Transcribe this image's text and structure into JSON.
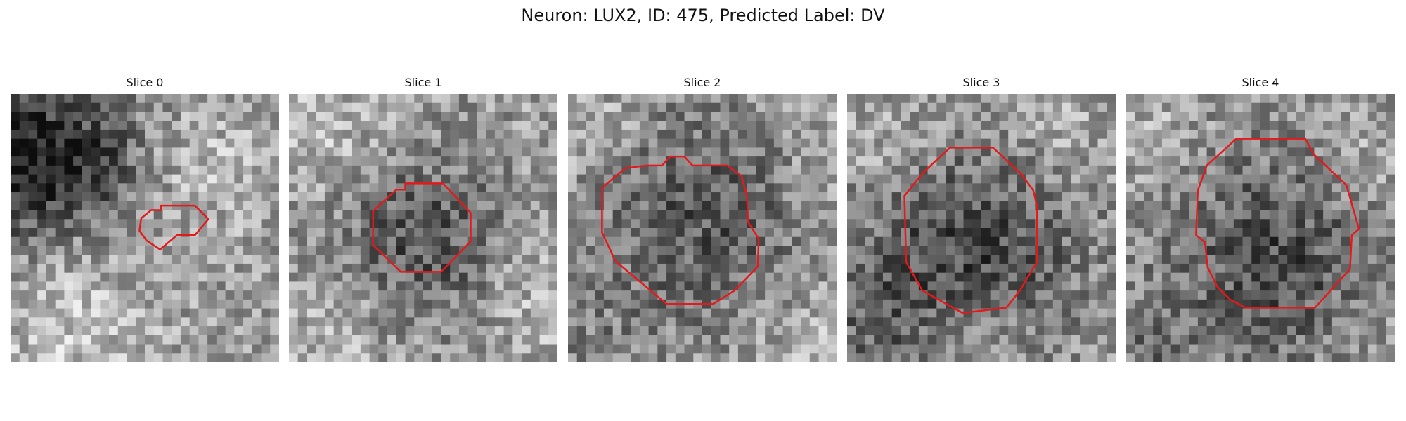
{
  "title": "Neuron: LUX2, ID: 475, Predicted Label: DV",
  "contour_color": "#e31a1c",
  "slices": [
    {
      "label": "Slice 0",
      "seed": 17,
      "dark_centers": [
        [
          3,
          5,
          8,
          0.3
        ],
        [
          1,
          8,
          5,
          0.28
        ],
        [
          10,
          8,
          3,
          0.14
        ]
      ],
      "bright_centers": [
        [
          6,
          25,
          6,
          0.16
        ],
        [
          21,
          8,
          5,
          0.12
        ]
      ],
      "contour": [
        [
          16.8,
          12.5
        ],
        [
          20.6,
          12.5
        ],
        [
          22.1,
          14.0
        ],
        [
          20.6,
          15.8
        ],
        [
          18.6,
          15.8
        ],
        [
          16.7,
          17.4
        ],
        [
          15.2,
          16.4
        ],
        [
          14.4,
          15.3
        ],
        [
          14.6,
          13.9
        ],
        [
          15.7,
          13.0
        ],
        [
          16.8,
          13.0
        ]
      ]
    },
    {
      "label": "Slice 1",
      "seed": 41,
      "dark_centers": [
        [
          14.5,
          16,
          7,
          0.3
        ]
      ],
      "bright_centers": [
        [
          4,
          4,
          5,
          0.12
        ],
        [
          27,
          22,
          5,
          0.12
        ],
        [
          6,
          26,
          5,
          0.1
        ]
      ],
      "contour": [
        [
          13.0,
          10.0
        ],
        [
          17.2,
          10.0
        ],
        [
          20.3,
          13.3
        ],
        [
          20.3,
          16.5
        ],
        [
          17.0,
          19.9
        ],
        [
          12.5,
          19.9
        ],
        [
          9.4,
          16.9
        ],
        [
          9.4,
          13.1
        ],
        [
          12.0,
          10.7
        ],
        [
          13.0,
          10.7
        ]
      ]
    },
    {
      "label": "Slice 2",
      "seed": 73,
      "dark_centers": [
        [
          14,
          13,
          9,
          0.28
        ],
        [
          2,
          28,
          4,
          0.1
        ]
      ],
      "bright_centers": [
        [
          3,
          4,
          5,
          0.1
        ],
        [
          27,
          4,
          5,
          0.08
        ],
        [
          26,
          26,
          5,
          0.1
        ]
      ],
      "contour": [
        [
          11.4,
          7.0
        ],
        [
          13.0,
          7.0
        ],
        [
          13.9,
          8.0
        ],
        [
          17.8,
          8.0
        ],
        [
          19.4,
          9.2
        ],
        [
          20.0,
          11.5
        ],
        [
          20.1,
          14.3
        ],
        [
          21.3,
          16.2
        ],
        [
          21.2,
          19.3
        ],
        [
          18.6,
          22.0
        ],
        [
          16.2,
          23.5
        ],
        [
          11.0,
          23.5
        ],
        [
          5.3,
          18.7
        ],
        [
          3.8,
          15.5
        ],
        [
          3.8,
          10.5
        ],
        [
          6.4,
          8.3
        ],
        [
          8.8,
          8.0
        ],
        [
          10.5,
          8.0
        ]
      ]
    },
    {
      "label": "Slice 3",
      "seed": 97,
      "dark_centers": [
        [
          13.5,
          17,
          9,
          0.34
        ],
        [
          2,
          25,
          5,
          0.16
        ]
      ],
      "bright_centers": [
        [
          4,
          5,
          4,
          0.1
        ],
        [
          22,
          3,
          5,
          0.1
        ],
        [
          14,
          28,
          5,
          0.1
        ]
      ],
      "contour": [
        [
          12.5,
          6.0
        ],
        [
          16.3,
          6.0
        ],
        [
          19.5,
          9.0
        ],
        [
          20.8,
          10.8
        ],
        [
          21.2,
          12.5
        ],
        [
          21.2,
          18.8
        ],
        [
          19.3,
          22.0
        ],
        [
          17.8,
          23.9
        ],
        [
          12.9,
          24.5
        ],
        [
          8.4,
          22.0
        ],
        [
          6.6,
          18.8
        ],
        [
          6.4,
          11.4
        ],
        [
          8.5,
          8.8
        ],
        [
          10.3,
          7.1
        ],
        [
          11.5,
          6.0
        ]
      ]
    },
    {
      "label": "Slice 4",
      "seed": 131,
      "dark_centers": [
        [
          16.5,
          18,
          9,
          0.32
        ],
        [
          2,
          28,
          4,
          0.14
        ]
      ],
      "bright_centers": [
        [
          3,
          4,
          4,
          0.08
        ],
        [
          27,
          8,
          5,
          0.1
        ],
        [
          28,
          26,
          5,
          0.08
        ]
      ],
      "contour": [
        [
          13.0,
          5.0
        ],
        [
          20.0,
          5.0
        ],
        [
          21.0,
          6.8
        ],
        [
          24.6,
          10.2
        ],
        [
          26.0,
          15.1
        ],
        [
          25.2,
          15.8
        ],
        [
          25.0,
          19.6
        ],
        [
          21.1,
          23.9
        ],
        [
          13.3,
          23.9
        ],
        [
          11.6,
          23.0
        ],
        [
          10.2,
          21.6
        ],
        [
          9.1,
          19.4
        ],
        [
          8.8,
          16.6
        ],
        [
          7.8,
          15.8
        ],
        [
          8.0,
          10.8
        ],
        [
          9.0,
          8.0
        ],
        [
          12.3,
          5.0
        ]
      ]
    }
  ]
}
